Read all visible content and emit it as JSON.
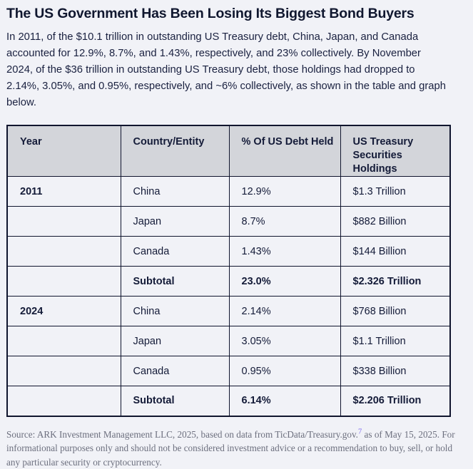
{
  "page": {
    "title": "The US Government Has Been Losing Its Biggest Bond Buyers",
    "intro": "In 2011, of the $10.1 trillion in outstanding US Treasury debt, China, Japan, and Canada accounted for 12.9%, 8.7%, and 1.43%, respectively, and 23% collectively. By November 2024, of the $36 trillion in outstanding US Treasury debt, those holdings had dropped to 2.14%, 3.05%, and 0.95%, respectively, and ~6% collectively, as shown in the table and graph below."
  },
  "table": {
    "headers": [
      "Year",
      "Country/Entity",
      "% Of US Debt Held",
      "US Treasury Securities Holdings"
    ],
    "rows": [
      {
        "year": "2011",
        "country": "China",
        "pct": "12.9%",
        "holdings": "$1.3 Trillion"
      },
      {
        "year": "",
        "country": "Japan",
        "pct": "8.7%",
        "holdings": "$882 Billion"
      },
      {
        "year": "",
        "country": "Canada",
        "pct": "1.43%",
        "holdings": "$144 Billion"
      },
      {
        "year": "",
        "country": "Subtotal",
        "pct": "23.0%",
        "holdings": "$2.326 Trillion"
      },
      {
        "year": "2024",
        "country": "China",
        "pct": "2.14%",
        "holdings": "$768 Billion"
      },
      {
        "year": "",
        "country": "Japan",
        "pct": "3.05%",
        "holdings": "$1.1 Trillion"
      },
      {
        "year": "",
        "country": "Canada",
        "pct": "0.95%",
        "holdings": "$338 Billion"
      },
      {
        "year": "",
        "country": "Subtotal",
        "pct": "6.14%",
        "holdings": "$2.206 Trillion"
      }
    ]
  },
  "footer": {
    "source_before": "Source: ARK Investment Management LLC, 2025, based on data from TicData/Treasury.gov.",
    "footnote_ref": "7",
    "source_after": " as of May 15, 2025. For informational purposes only and should not be considered investment advice or a recommendation to buy, sell, or hold any particular security or cryptocurrency."
  },
  "colors": {
    "page_background": "#f1f2f7",
    "table_header_background": "#d3d5da",
    "table_border": "#10152e",
    "heading_text": "#10172f",
    "body_text": "#1a2140",
    "footer_text": "#6c6f7e",
    "footnote_link": "#7b68f0"
  }
}
